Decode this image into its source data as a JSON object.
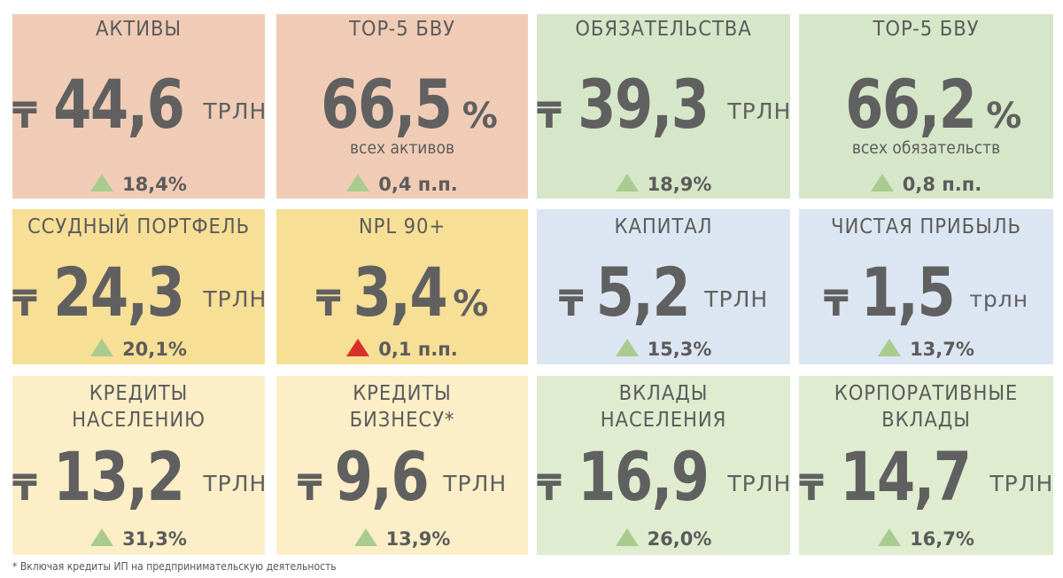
{
  "currency_symbol": "₸",
  "colors": {
    "text": "#5b5b5b",
    "up_triangle": "#a9cc8e",
    "down_triangle": "#d8302a",
    "peach": "#f0ccb6",
    "yellow": "#f8df96",
    "green": "#d6e6c8",
    "blue": "#dce6f2",
    "cream": "#fcefc7",
    "light_green": "#dfeccf"
  },
  "cards": [
    {
      "title": "АКТИВЫ",
      "value": "44,6",
      "unit": "ТРЛН",
      "change": "18,4%",
      "trend_icon": "triangle-up-green"
    },
    {
      "title": "TOP-5 БВУ",
      "value": "66,5",
      "percent": "%",
      "note": "всех активов",
      "change": "0,4 п.п.",
      "trend_icon": "triangle-up-green"
    },
    {
      "title": "ОБЯЗАТЕЛЬСТВА",
      "value": "39,3",
      "unit": "ТРЛН",
      "change": "18,9%",
      "trend_icon": "triangle-up-green"
    },
    {
      "title": "TOP-5 БВУ",
      "value": "66,2",
      "percent": "%",
      "note": "всех обязательств",
      "change": "0,8 п.п.",
      "trend_icon": "triangle-up-green"
    },
    {
      "title": "ССУДНЫЙ ПОРТФЕЛЬ",
      "value": "24,3",
      "unit": "ТРЛН",
      "change": "20,1%",
      "trend_icon": "triangle-up-green"
    },
    {
      "title": "NPL 90+",
      "value": "3,4",
      "percent": "%",
      "change": "0,1 п.п.",
      "trend_icon": "triangle-up-red"
    },
    {
      "title": "КАПИТАЛ",
      "value": "5,2",
      "unit": "ТРЛН",
      "change": "15,3%",
      "trend_icon": "triangle-up-green"
    },
    {
      "title": "ЧИСТАЯ ПРИБЫЛЬ",
      "value": "1,5",
      "unit": "трлн",
      "change": "13,7%",
      "trend_icon": "triangle-up-green"
    },
    {
      "title": "КРЕДИТЫ\nНАСЕЛЕНИЮ",
      "value": "13,2",
      "unit": "ТРЛН",
      "change": "31,3%",
      "trend_icon": "triangle-up-green"
    },
    {
      "title": "КРЕДИТЫ\nБИЗНЕСУ*",
      "value": "9,6",
      "unit": "ТРЛН",
      "change": "13,9%",
      "trend_icon": "triangle-up-green"
    },
    {
      "title": "ВКЛАДЫ\nНАСЕЛЕНИЯ",
      "value": "16,9",
      "unit": "ТРЛН",
      "change": "26,0%",
      "trend_icon": "triangle-up-green"
    },
    {
      "title": "КОРПОРАТИВНЫЕ\nВКЛАДЫ",
      "value": "14,7",
      "unit": "ТРЛН",
      "change": "16,7%",
      "trend_icon": "triangle-up-green"
    }
  ],
  "footnote": "* Включая кредиты ИП на предпринимательскую деятельность"
}
